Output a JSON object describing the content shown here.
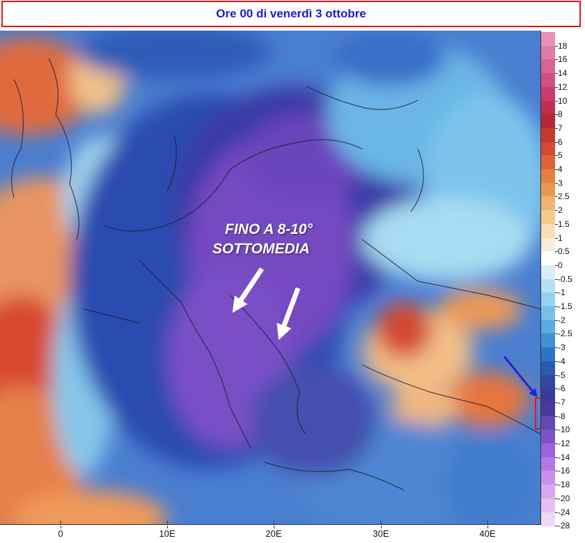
{
  "title": "Ore 00 di venerdì 3 ottobre",
  "annotation": {
    "line1": "FINO A  8-10°",
    "line2": "SOTTOMEDIA"
  },
  "x_axis": {
    "ticks": [
      "0",
      "10E",
      "20E",
      "30E",
      "40E"
    ]
  },
  "legend": {
    "labels": [
      "18",
      "16",
      "14",
      "12",
      "10",
      "8",
      "7",
      "6",
      "5",
      "4",
      "3",
      "2.5",
      "2",
      "1.5",
      "1",
      "0.5",
      "0",
      "-0.5",
      "-1",
      "-1.5",
      "-2",
      "-2.5",
      "-3",
      "-4",
      "-5",
      "-6",
      "-7",
      "-8",
      "-10",
      "-12",
      "-14",
      "-16",
      "-18",
      "-20",
      "-24",
      "-28"
    ],
    "colors": [
      "#e890b8",
      "#e07aa8",
      "#d86496",
      "#d05084",
      "#c83c6e",
      "#c02e52",
      "#b42838",
      "#c43a2e",
      "#d24a30",
      "#dc6438",
      "#e4803e",
      "#ea9a50",
      "#efb470",
      "#f3cb92",
      "#f6dfb8",
      "#f8ecd8",
      "#ffffff",
      "#d6f0f6",
      "#b4e2f2",
      "#94d2ee",
      "#76c0ea",
      "#5aaae4",
      "#4290d8",
      "#2e74c6",
      "#2a5ab2",
      "#3048a4",
      "#3a3a98",
      "#4a3a9e",
      "#6448b4",
      "#7a54c8",
      "#9c64dc",
      "#b478e4",
      "#c890ea",
      "#d6a8ee",
      "#e4c0f2",
      "#f0d8f6"
    ]
  },
  "colors": {
    "title_border": "#e01818",
    "title_text": "#1a1ad8",
    "arrow_white": "#ffffff",
    "arrow_blue": "#1a2ad8",
    "highlight_border": "#e01818"
  }
}
